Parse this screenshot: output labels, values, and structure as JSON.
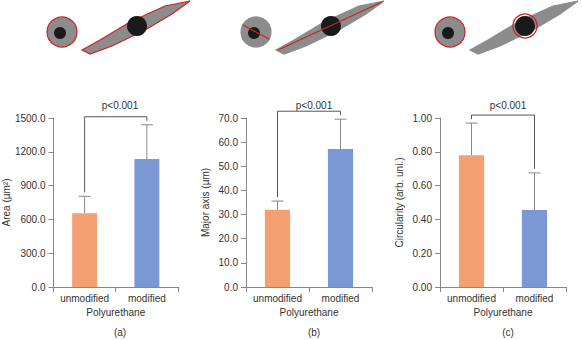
{
  "chart_data": [
    {
      "type": "bar",
      "panel_label": "(a)",
      "annotation": "p<0.001",
      "x_label": "Polyurethane",
      "y_label": "Area (µm²)",
      "categories": [
        "unmodified",
        "modified"
      ],
      "values": [
        655,
        1135
      ],
      "errors": [
        150,
        305
      ],
      "colors": [
        "#f4a072",
        "#7b97d4"
      ],
      "ylim": [
        0,
        1500
      ],
      "yticks": [
        {
          "value": 0,
          "label": "0.0"
        },
        {
          "value": 300,
          "label": "300.0"
        },
        {
          "value": 600,
          "label": "600.0"
        },
        {
          "value": 900,
          "label": "900.0"
        },
        {
          "value": 1200,
          "label": "1200.0"
        },
        {
          "value": 1500,
          "label": "1500.0"
        }
      ],
      "grid": false
    },
    {
      "type": "bar",
      "panel_label": "(b)",
      "annotation": "p<0.001",
      "x_label": "Polyurethane",
      "y_label": "Major axis (µm)",
      "categories": [
        "unmodified",
        "modified"
      ],
      "values": [
        32,
        57.2
      ],
      "errors": [
        3.6,
        12.3
      ],
      "colors": [
        "#f4a072",
        "#7b97d4"
      ],
      "ylim": [
        0,
        70
      ],
      "yticks": [
        {
          "value": 0,
          "label": "0.0"
        },
        {
          "value": 10,
          "label": "10.0"
        },
        {
          "value": 20,
          "label": "20.0"
        },
        {
          "value": 30,
          "label": "30.0"
        },
        {
          "value": 40,
          "label": "40.0"
        },
        {
          "value": 50,
          "label": "50.0"
        },
        {
          "value": 60,
          "label": "60.0"
        },
        {
          "value": 70,
          "label": "70.0"
        }
      ],
      "grid": false
    },
    {
      "type": "bar",
      "panel_label": "(c)",
      "annotation": "p<0.001",
      "x_label": "Polyurethane",
      "y_label": "Circularity (arb. uni.)",
      "categories": [
        "unmodified",
        "modified"
      ],
      "values": [
        0.78,
        0.455
      ],
      "errors": [
        0.19,
        0.22
      ],
      "colors": [
        "#f4a072",
        "#7b97d4"
      ],
      "ylim": [
        0,
        1
      ],
      "yticks": [
        {
          "value": 0,
          "label": "0.00"
        },
        {
          "value": 0.2,
          "label": "0.20"
        },
        {
          "value": 0.4,
          "label": "0.40"
        },
        {
          "value": 0.6,
          "label": "0.60"
        },
        {
          "value": 0.8,
          "label": "0.80"
        },
        {
          "value": 1,
          "label": "1.00"
        }
      ],
      "grid": false
    }
  ]
}
